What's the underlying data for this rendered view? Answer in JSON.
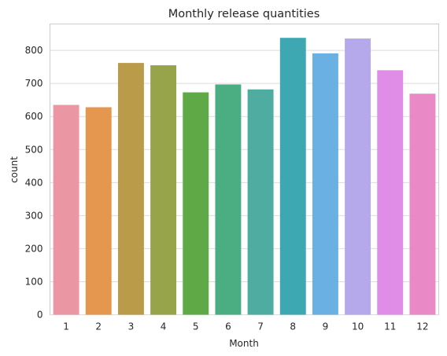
{
  "chart_data": {
    "type": "bar",
    "title": "Monthly release quantities",
    "xlabel": "Month",
    "ylabel": "count",
    "categories": [
      "1",
      "2",
      "3",
      "4",
      "5",
      "6",
      "7",
      "8",
      "9",
      "10",
      "11",
      "12"
    ],
    "values": [
      635,
      628,
      762,
      755,
      673,
      697,
      682,
      838,
      791,
      836,
      740,
      669
    ],
    "colors": [
      "#ea96a3",
      "#e59750",
      "#b99b49",
      "#98a44a",
      "#5faa47",
      "#4bae82",
      "#4eaca1",
      "#3ea8b2",
      "#6ab0e3",
      "#b6a9eb",
      "#df8de7",
      "#e98ac6"
    ],
    "yticks": [
      0,
      100,
      200,
      300,
      400,
      500,
      600,
      700,
      800
    ],
    "ylim": [
      0,
      880
    ],
    "grid": true,
    "legend": "none"
  }
}
